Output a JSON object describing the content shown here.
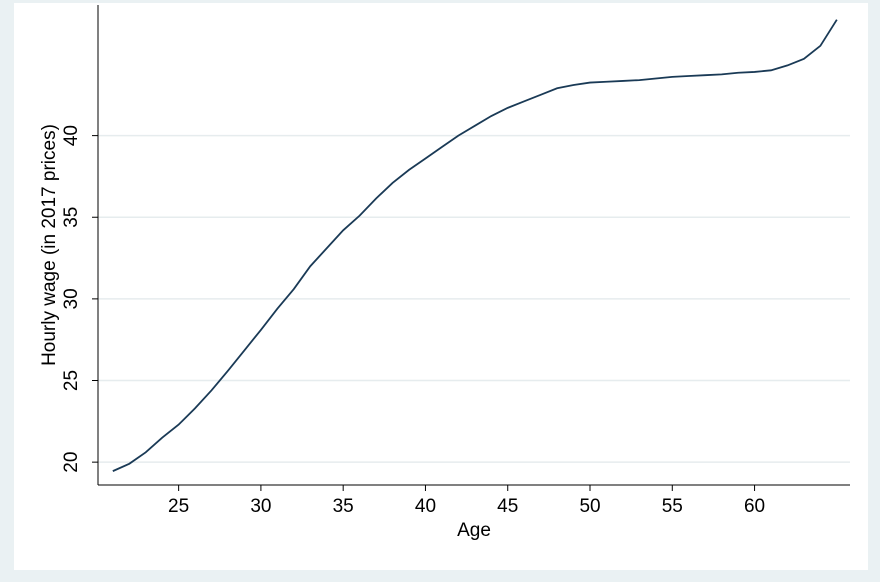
{
  "chart_data": {
    "type": "line",
    "x_label": "Age",
    "y_label": "Hourly wage (in 2017 prices)",
    "x": [
      21,
      22,
      23,
      24,
      25,
      26,
      27,
      28,
      29,
      30,
      31,
      32,
      33,
      34,
      35,
      36,
      37,
      38,
      39,
      40,
      41,
      42,
      43,
      44,
      45,
      46,
      47,
      48,
      49,
      50,
      51,
      52,
      53,
      54,
      55,
      56,
      57,
      58,
      59,
      60,
      61,
      62,
      63,
      64,
      65
    ],
    "series": [
      {
        "name": "Hourly wage",
        "color": "#1a3a56",
        "values": [
          19.45,
          19.9,
          20.6,
          21.5,
          22.3,
          23.3,
          24.4,
          25.6,
          26.85,
          28.1,
          29.4,
          30.6,
          32.0,
          33.1,
          34.2,
          35.1,
          36.15,
          37.1,
          37.9,
          38.6,
          39.3,
          40.0,
          40.6,
          41.2,
          41.7,
          42.1,
          42.5,
          42.9,
          43.1,
          43.25,
          43.3,
          43.35,
          43.4,
          43.5,
          43.6,
          43.65,
          43.7,
          43.75,
          43.85,
          43.9,
          44.0,
          44.3,
          44.7,
          45.5,
          47.1
        ]
      }
    ],
    "xlim": [
      20.1,
      65.8
    ],
    "ylim": [
      18.6,
      48.0
    ],
    "xticks": [
      25,
      30,
      35,
      40,
      45,
      50,
      55,
      60
    ],
    "yticks": [
      20,
      25,
      30,
      35,
      40
    ],
    "grid": true
  }
}
